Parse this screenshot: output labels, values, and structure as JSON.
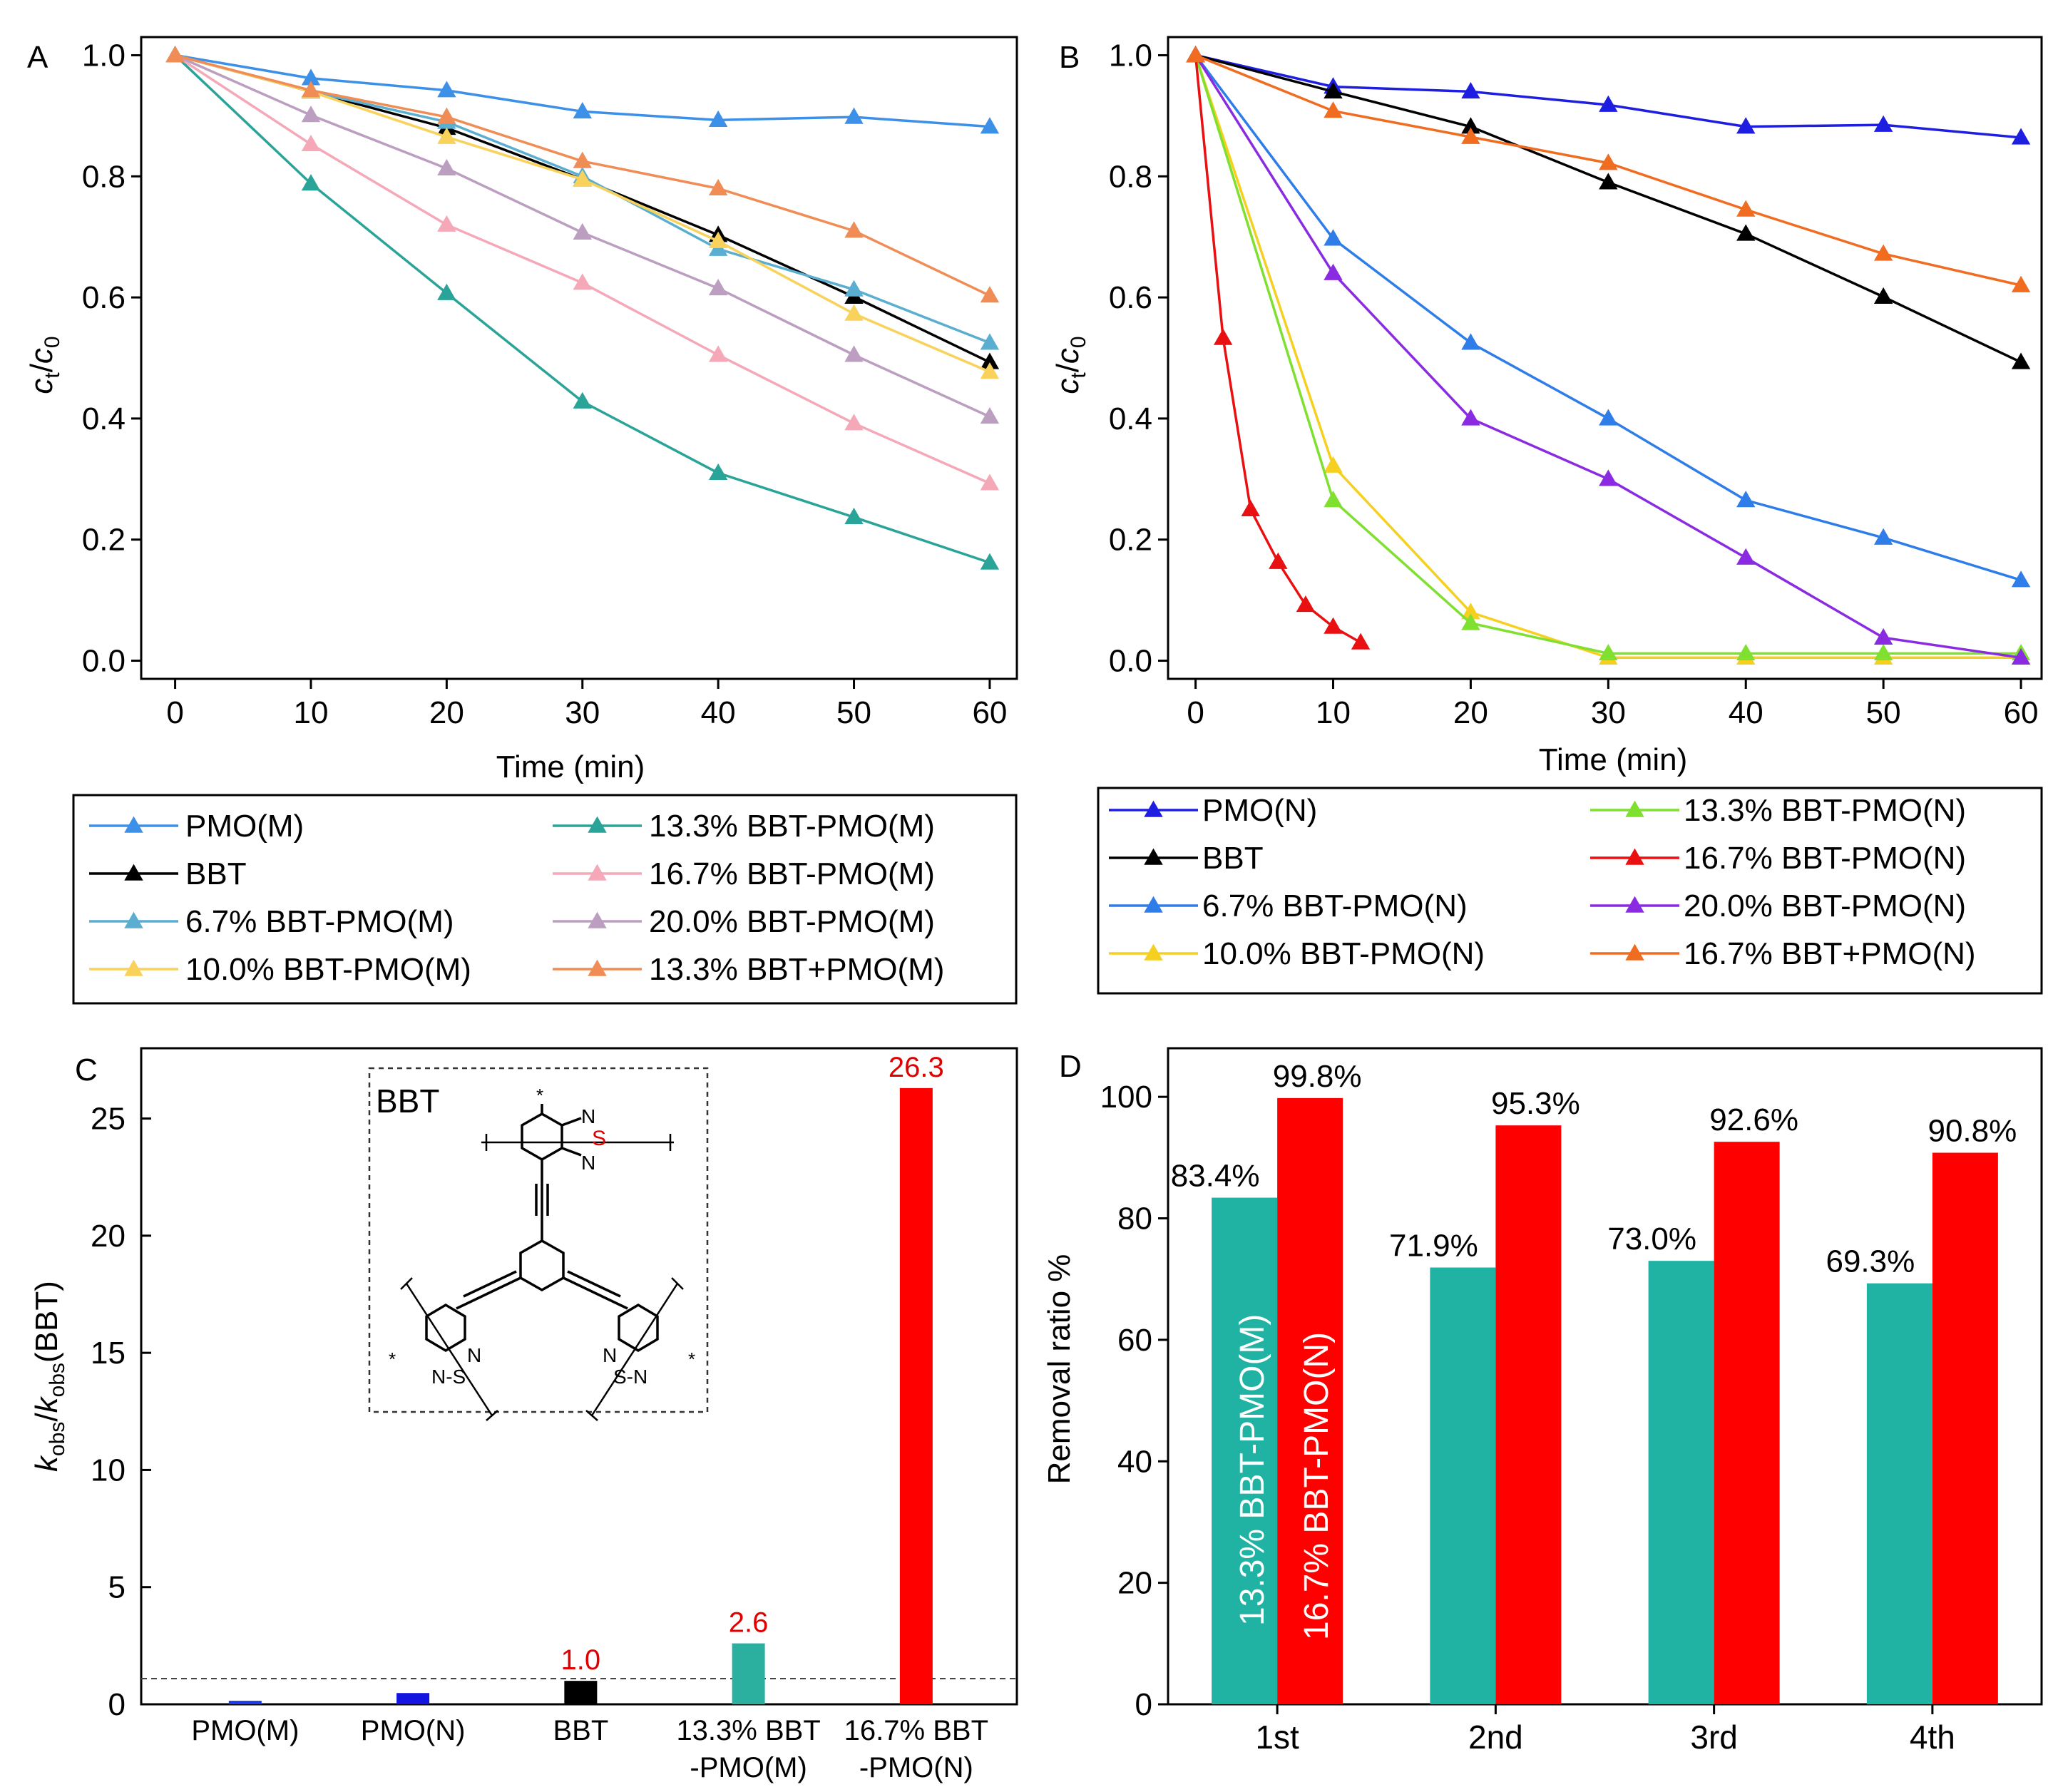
{
  "chart_data": [
    {
      "panel_label": "A",
      "type": "line",
      "xlabel": "Time (min)",
      "ylabel": "ct/c0",
      "ylabel_main": "c",
      "ylabel_sub1": "t",
      "ylabel_slash": "/",
      "ylabel_sub2": "0",
      "x": [
        0,
        10,
        20,
        30,
        40,
        50,
        60
      ],
      "xlim": [
        -2.5,
        62
      ],
      "ylim": [
        -0.03,
        1.03
      ],
      "xticks": [
        0,
        10,
        20,
        30,
        40,
        50,
        60
      ],
      "yticks": [
        0.0,
        0.2,
        0.4,
        0.6,
        0.8,
        1.0
      ],
      "ytick_labels": [
        "0.0",
        "0.2",
        "0.4",
        "0.6",
        "0.8",
        "1.0"
      ],
      "series": [
        {
          "name": "PMO(M)",
          "color": "#3c90e8",
          "values": [
            1.0,
            0.962,
            0.942,
            0.907,
            0.893,
            0.898,
            0.882
          ]
        },
        {
          "name": "BBT",
          "color": "#000000",
          "values": [
            1.0,
            0.94,
            0.88,
            0.795,
            0.703,
            0.601,
            0.493
          ]
        },
        {
          "name": " 6.7% BBT-PMO(M)",
          "color": "#5aaed0",
          "values": [
            1.0,
            0.94,
            0.89,
            0.8,
            0.68,
            0.613,
            0.525
          ]
        },
        {
          "name": "10.0% BBT-PMO(M)",
          "color": "#f8d25a",
          "values": [
            1.0,
            0.94,
            0.865,
            0.795,
            0.693,
            0.573,
            0.477
          ]
        },
        {
          "name": "13.3% BBT-PMO(M)",
          "color": "#2aa398",
          "values": [
            1.0,
            0.788,
            0.607,
            0.428,
            0.31,
            0.237,
            0.162
          ]
        },
        {
          "name": "16.7% BBT-PMO(M)",
          "color": "#f4a8b8",
          "values": [
            1.0,
            0.853,
            0.72,
            0.624,
            0.505,
            0.392,
            0.293
          ]
        },
        {
          "name": "20.0% BBT-PMO(M)",
          "color": "#bb9ec0",
          "values": [
            1.0,
            0.901,
            0.813,
            0.707,
            0.615,
            0.505,
            0.403
          ]
        },
        {
          "name": "13.3% BBT+PMO(M)",
          "color": "#f08c55",
          "values": [
            1.0,
            0.942,
            0.898,
            0.825,
            0.78,
            0.71,
            0.603
          ]
        }
      ]
    },
    {
      "panel_label": "B",
      "type": "line",
      "xlabel": "Time (min)",
      "ylabel": "ct/c0",
      "ylabel_main": "c",
      "ylabel_sub1": "t",
      "ylabel_slash": "/",
      "ylabel_sub2": "0",
      "xlim": [
        -2,
        61.5
      ],
      "ylim": [
        -0.03,
        1.03
      ],
      "xticks": [
        0,
        10,
        20,
        30,
        40,
        50,
        60
      ],
      "yticks": [
        0.0,
        0.2,
        0.4,
        0.6,
        0.8,
        1.0
      ],
      "ytick_labels": [
        "0.0",
        "0.2",
        "0.4",
        "0.6",
        "0.8",
        "1.0"
      ],
      "series": [
        {
          "name": "PMO(N)",
          "color": "#1e1ee0",
          "x": [
            0,
            10,
            20,
            30,
            40,
            50,
            60
          ],
          "values": [
            1.0,
            0.948,
            0.94,
            0.918,
            0.882,
            0.885,
            0.864
          ]
        },
        {
          "name": "BBT",
          "color": "#000000",
          "x": [
            0,
            10,
            20,
            30,
            40,
            50,
            60
          ],
          "values": [
            1.0,
            0.94,
            0.882,
            0.79,
            0.705,
            0.601,
            0.493
          ]
        },
        {
          "name": "6.7% BBT-PMO(N)",
          "color": "#2e7de8",
          "x": [
            0,
            10,
            20,
            30,
            40,
            50,
            60
          ],
          "values": [
            1.0,
            0.697,
            0.525,
            0.4,
            0.265,
            0.203,
            0.133
          ]
        },
        {
          "name": "10.0% BBT-PMO(N)",
          "color": "#f5d020",
          "x": [
            0,
            10,
            20,
            30,
            40,
            50,
            60
          ],
          "values": [
            1.0,
            0.322,
            0.08,
            0.005,
            0.005,
            0.005,
            0.005
          ]
        },
        {
          "name": "13.3% BBT-PMO(N)",
          "color": "#7fe030",
          "x": [
            0,
            10,
            20,
            30,
            40,
            50,
            60
          ],
          "values": [
            1.0,
            0.265,
            0.062,
            0.012,
            0.012,
            0.012,
            0.012
          ]
        },
        {
          "name": "16.7% BBT-PMO(N)",
          "color": "#e81010",
          "x": [
            0,
            2,
            4,
            6,
            8,
            10,
            12
          ],
          "values": [
            1.0,
            0.533,
            0.25,
            0.163,
            0.092,
            0.056,
            0.03
          ]
        },
        {
          "name": "20.0% BBT-PMO(N)",
          "color": "#8a2be2",
          "x": [
            0,
            10,
            20,
            30,
            40,
            50,
            60
          ],
          "values": [
            1.0,
            0.64,
            0.4,
            0.3,
            0.17,
            0.038,
            0.005
          ]
        },
        {
          "name": "16.7% BBT+PMO(N)",
          "color": "#f06c20",
          "x": [
            0,
            10,
            20,
            30,
            40,
            50,
            60
          ],
          "values": [
            1.0,
            0.908,
            0.865,
            0.822,
            0.745,
            0.672,
            0.62
          ]
        }
      ]
    },
    {
      "panel_label": "C",
      "type": "bar",
      "ylabel": "kobs/kobs(BBT)",
      "ylabel_k1": "k",
      "ylabel_obs1": "obs",
      "ylabel_slash": "/",
      "ylabel_k2": "k",
      "ylabel_obs2": "obs",
      "ylabel_tail": "(BBT)",
      "categories": [
        "PMO(M)",
        "PMO(N)",
        "BBT",
        "13.3% BBT-PMO(M)",
        "16.7% BBT-PMO(N)"
      ],
      "category_lines": [
        [
          "PMO(M)"
        ],
        [
          "PMO(N)"
        ],
        [
          "BBT"
        ],
        [
          "13.3% BBT",
          "-PMO(M)"
        ],
        [
          "16.7% BBT",
          "-PMO(N)"
        ]
      ],
      "values": [
        0.15,
        0.48,
        1.0,
        2.6,
        26.3
      ],
      "colors": [
        "#1e3ce6",
        "#1414e0",
        "#000000",
        "#2bb0a0",
        "#ff0000"
      ],
      "value_labels": [
        "",
        "",
        "1.0",
        "2.6",
        "26.3"
      ],
      "ylim": [
        0,
        28
      ],
      "yticks": [
        0,
        5,
        10,
        15,
        20,
        25
      ],
      "reference_line": 1.1,
      "inset": {
        "title": "BBT",
        "atoms": {
          "star": "*",
          "n": "N",
          "s": "S",
          "ns": "N-S",
          "sn": "S-N"
        }
      }
    },
    {
      "panel_label": "D",
      "type": "bar",
      "ylabel": "Removal ratio %",
      "categories": [
        "1st",
        "2nd",
        "3rd",
        "4th"
      ],
      "series": [
        {
          "name": "13.3% BBT-PMO(M)",
          "color": "#20b2a2",
          "values": [
            83.4,
            71.9,
            73.0,
            69.3
          ],
          "labels": [
            "83.4%",
            "71.9%",
            "73.0%",
            "69.3%"
          ]
        },
        {
          "name": "16.7% BBT-PMO(N)",
          "color": "#ff0000",
          "values": [
            99.8,
            95.3,
            92.6,
            90.8
          ],
          "labels": [
            "99.8%",
            "95.3%",
            "92.6%",
            "90.8%"
          ]
        }
      ],
      "ylim": [
        0,
        108
      ],
      "yticks": [
        0,
        20,
        40,
        60,
        80,
        100
      ]
    }
  ]
}
